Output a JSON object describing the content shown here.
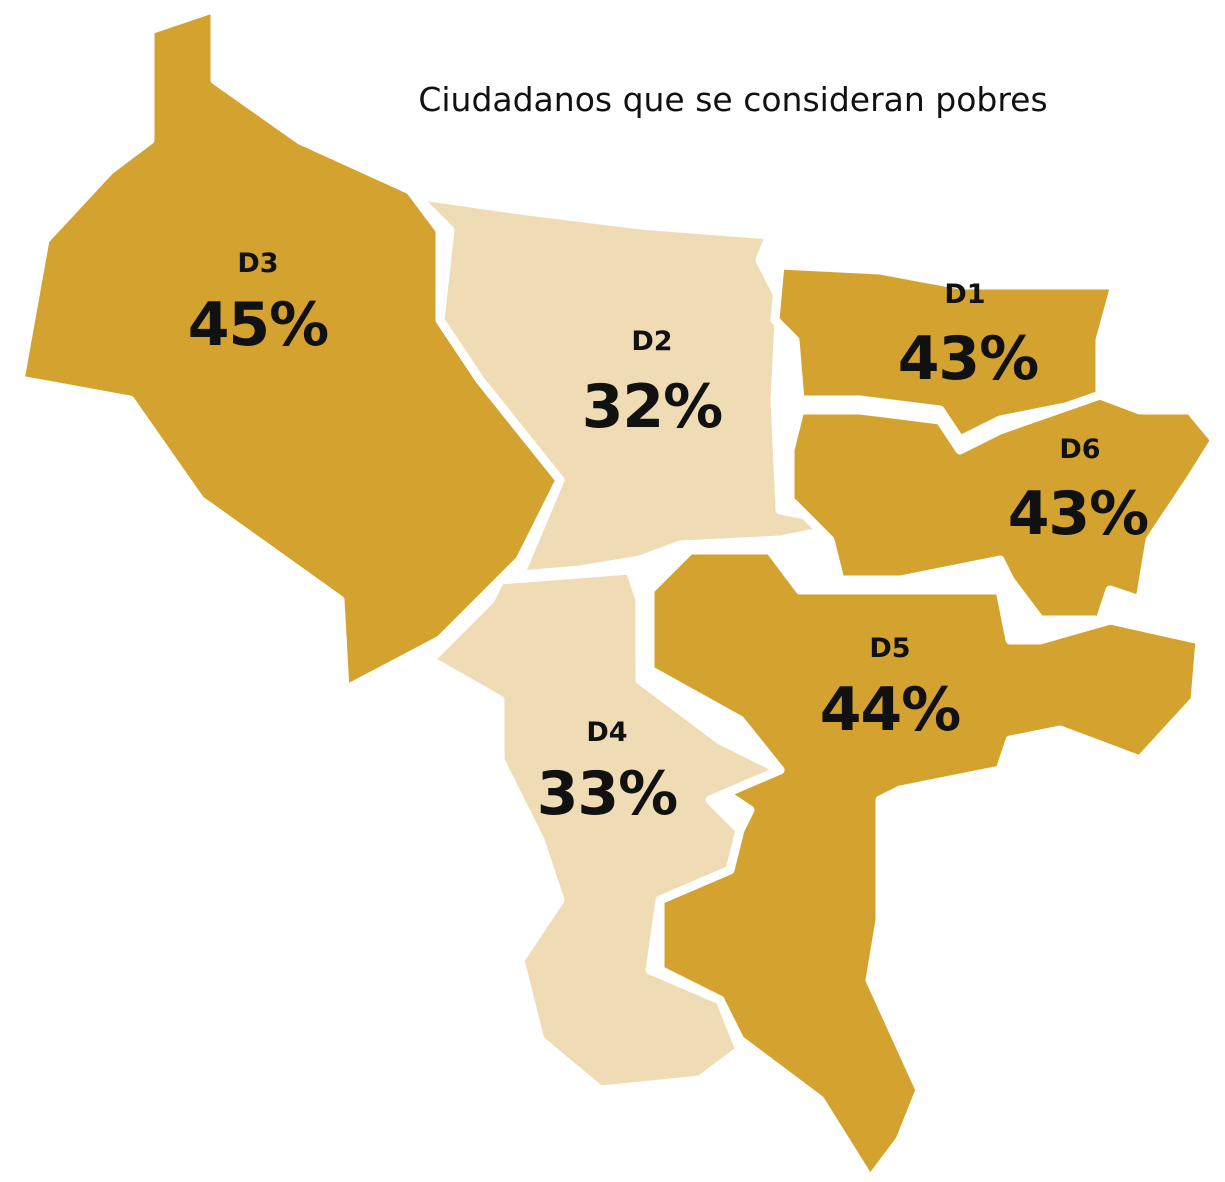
{
  "chart_data": {
    "type": "choropleth",
    "title": "Ciudadanos que se consideran pobres",
    "categories": [
      "D3",
      "D2",
      "D1",
      "D6",
      "D5",
      "D4"
    ],
    "values": [
      45,
      32,
      43,
      43,
      44,
      33
    ],
    "value_labels": [
      "45%",
      "32%",
      "43%",
      "43%",
      "44%",
      "33%"
    ],
    "colors": [
      "#d4a22f",
      "#efdcb5",
      "#d4a22f",
      "#d4a22f",
      "#d4a22f",
      "#efdcb5"
    ]
  }
}
